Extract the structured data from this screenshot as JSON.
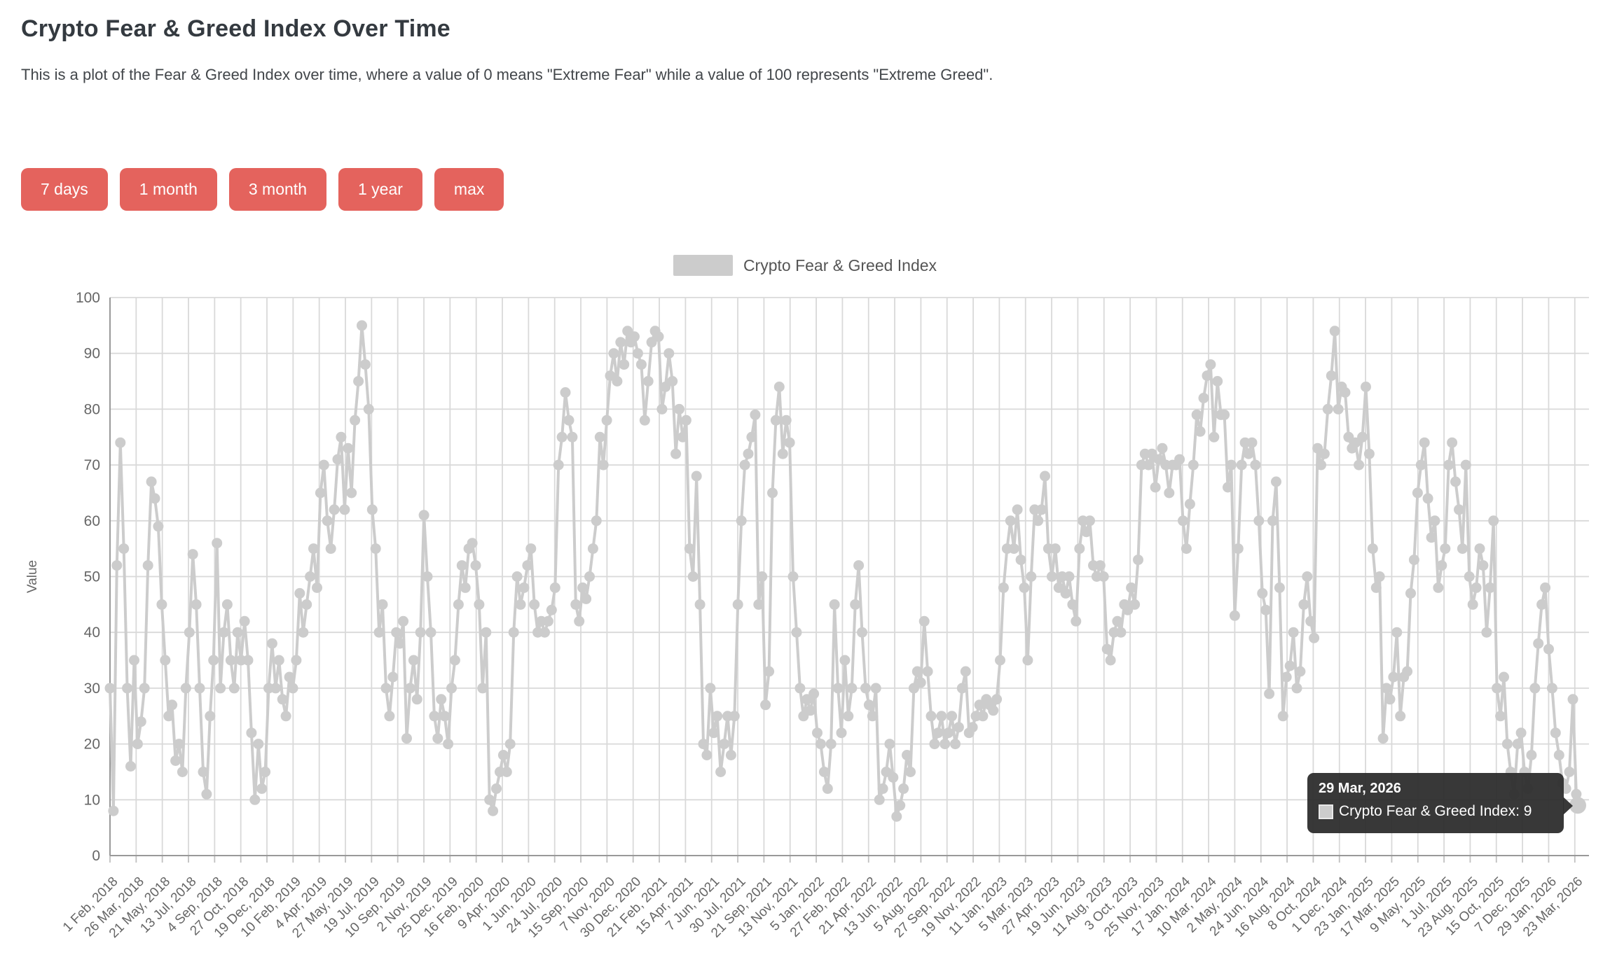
{
  "header": {
    "title": "Crypto Fear & Greed Index Over Time",
    "description": "This is a plot of the Fear & Greed Index over time, where a value of 0 means \"Extreme Fear\" while a value of 100 represents \"Extreme Greed\"."
  },
  "buttons": [
    {
      "label": "7 days"
    },
    {
      "label": "1 month"
    },
    {
      "label": "3 month"
    },
    {
      "label": "1 year"
    },
    {
      "label": "max"
    }
  ],
  "legend": {
    "label": "Crypto Fear & Greed Index"
  },
  "tooltip": {
    "date": "29 Mar, 2026",
    "text": "Crypto Fear & Greed Index: 9"
  },
  "colors": {
    "accent_button": "#e4635d",
    "series": "#cccccc",
    "grid": "#d9d9d9",
    "axis_line": "#999999",
    "tick_mark": "#c0c0c0",
    "axis_text": "#666666",
    "legend_text": "#555555",
    "tooltip_bg": "#2d2d2d"
  },
  "chart_data": {
    "type": "line",
    "title": "",
    "ylabel": "Value",
    "ylim": [
      0,
      100
    ],
    "grid": true,
    "legend_position": "top-center",
    "y_ticks": [
      0,
      10,
      20,
      30,
      40,
      50,
      60,
      70,
      80,
      90,
      100
    ],
    "x_tick_labels": [
      "1 Feb, 2018",
      "26 Mar, 2018",
      "21 May, 2018",
      "13 Jul, 2018",
      "4 Sep, 2018",
      "27 Oct, 2018",
      "19 Dec, 2018",
      "10 Feb, 2019",
      "4 Apr, 2019",
      "27 May, 2019",
      "19 Jul, 2019",
      "10 Sep, 2019",
      "2 Nov, 2019",
      "25 Dec, 2019",
      "16 Feb, 2020",
      "9 Apr, 2020",
      "1 Jun, 2020",
      "24 Jul, 2020",
      "15 Sep, 2020",
      "7 Nov, 2020",
      "30 Dec, 2020",
      "21 Feb, 2021",
      "15 Apr, 2021",
      "7 Jun, 2021",
      "30 Jul, 2021",
      "21 Sep, 2021",
      "13 Nov, 2021",
      "5 Jan, 2022",
      "27 Feb, 2022",
      "21 Apr, 2022",
      "13 Jun, 2022",
      "5 Aug, 2022",
      "27 Sep, 2022",
      "19 Nov, 2022",
      "11 Jan, 2023",
      "5 Mar, 2023",
      "27 Apr, 2023",
      "19 Jun, 2023",
      "11 Aug, 2023",
      "3 Oct, 2023",
      "25 Nov, 2023",
      "17 Jan, 2024",
      "10 Mar, 2024",
      "2 May, 2024",
      "24 Jun, 2024",
      "16 Aug, 2024",
      "8 Oct, 2024",
      "1 Dec, 2024",
      "23 Jan, 2025",
      "17 Mar, 2025",
      "9 May, 2025",
      "1 Jul, 2025",
      "23 Aug, 2025",
      "15 Oct, 2025",
      "7 Dec, 2025",
      "29 Jan, 2026",
      "23 Mar, 2026"
    ],
    "x_tick_span_days": 2972,
    "x_range_days": 2978,
    "series": [
      {
        "name": "Crypto Fear & Greed Index",
        "color": "#cccccc",
        "start_date": "2018-02-01",
        "interval_days": 7,
        "values": [
          30,
          8,
          52,
          74,
          55,
          30,
          16,
          35,
          20,
          24,
          30,
          52,
          67,
          64,
          59,
          45,
          35,
          25,
          27,
          17,
          20,
          15,
          30,
          40,
          54,
          45,
          30,
          15,
          11,
          25,
          35,
          56,
          30,
          40,
          45,
          35,
          30,
          40,
          35,
          42,
          35,
          22,
          10,
          20,
          12,
          15,
          30,
          38,
          30,
          35,
          28,
          25,
          32,
          30,
          35,
          47,
          40,
          45,
          50,
          55,
          48,
          65,
          70,
          60,
          55,
          62,
          71,
          75,
          62,
          73,
          65,
          78,
          85,
          95,
          88,
          80,
          62,
          55,
          40,
          45,
          30,
          25,
          32,
          40,
          38,
          42,
          21,
          30,
          35,
          28,
          40,
          61,
          50,
          40,
          25,
          21,
          28,
          25,
          20,
          30,
          35,
          45,
          52,
          48,
          55,
          56,
          52,
          45,
          30,
          40,
          10,
          8,
          12,
          15,
          18,
          15,
          20,
          40,
          50,
          45,
          48,
          52,
          55,
          45,
          40,
          42,
          40,
          42,
          44,
          48,
          70,
          75,
          83,
          78,
          75,
          45,
          42,
          48,
          46,
          50,
          55,
          60,
          75,
          70,
          78,
          86,
          90,
          85,
          92,
          88,
          94,
          92,
          93,
          90,
          88,
          78,
          85,
          92,
          94,
          93,
          80,
          84,
          90,
          85,
          72,
          80,
          75,
          78,
          55,
          50,
          68,
          45,
          20,
          18,
          30,
          22,
          25,
          15,
          20,
          25,
          18,
          25,
          45,
          60,
          70,
          72,
          75,
          79,
          45,
          50,
          27,
          33,
          65,
          78,
          84,
          72,
          78,
          74,
          50,
          40,
          30,
          25,
          28,
          26,
          29,
          22,
          20,
          15,
          12,
          20,
          45,
          30,
          22,
          35,
          25,
          30,
          45,
          52,
          40,
          30,
          27,
          25,
          30,
          10,
          12,
          15,
          20,
          14,
          7,
          9,
          12,
          18,
          15,
          30,
          33,
          31,
          42,
          33,
          25,
          20,
          22,
          25,
          20,
          22,
          25,
          20,
          23,
          30,
          33,
          22,
          23,
          25,
          27,
          25,
          28,
          27,
          26,
          28,
          35,
          48,
          55,
          60,
          55,
          62,
          53,
          48,
          35,
          50,
          62,
          60,
          62,
          68,
          55,
          50,
          55,
          48,
          50,
          47,
          50,
          45,
          42,
          55,
          60,
          58,
          60,
          52,
          50,
          52,
          50,
          37,
          35,
          40,
          42,
          40,
          45,
          44,
          48,
          45,
          53,
          70,
          72,
          70,
          72,
          66,
          71,
          73,
          70,
          65,
          70,
          70,
          71,
          60,
          55,
          63,
          70,
          79,
          76,
          82,
          86,
          88,
          75,
          85,
          79,
          79,
          66,
          70,
          43,
          55,
          70,
          74,
          72,
          74,
          70,
          60,
          47,
          44,
          29,
          60,
          67,
          48,
          25,
          32,
          34,
          40,
          30,
          33,
          45,
          50,
          42,
          39,
          73,
          70,
          72,
          80,
          86,
          94,
          80,
          84,
          83,
          75,
          73,
          74,
          70,
          75,
          84,
          72,
          55,
          48,
          50,
          21,
          30,
          28,
          32,
          40,
          25,
          32,
          33,
          47,
          53,
          65,
          70,
          74,
          64,
          57,
          60,
          48,
          52,
          55,
          70,
          74,
          67,
          62,
          55,
          70,
          50,
          45,
          48,
          55,
          52,
          40,
          48,
          60,
          30,
          25,
          32,
          20,
          15,
          11,
          20,
          22,
          15,
          12,
          18,
          30,
          38,
          45,
          48,
          37,
          30,
          22,
          18,
          13,
          12,
          15,
          28,
          11
        ]
      }
    ],
    "last_point": {
      "label": "29 Mar, 2026",
      "value": 9,
      "day_offset": 2978
    }
  }
}
